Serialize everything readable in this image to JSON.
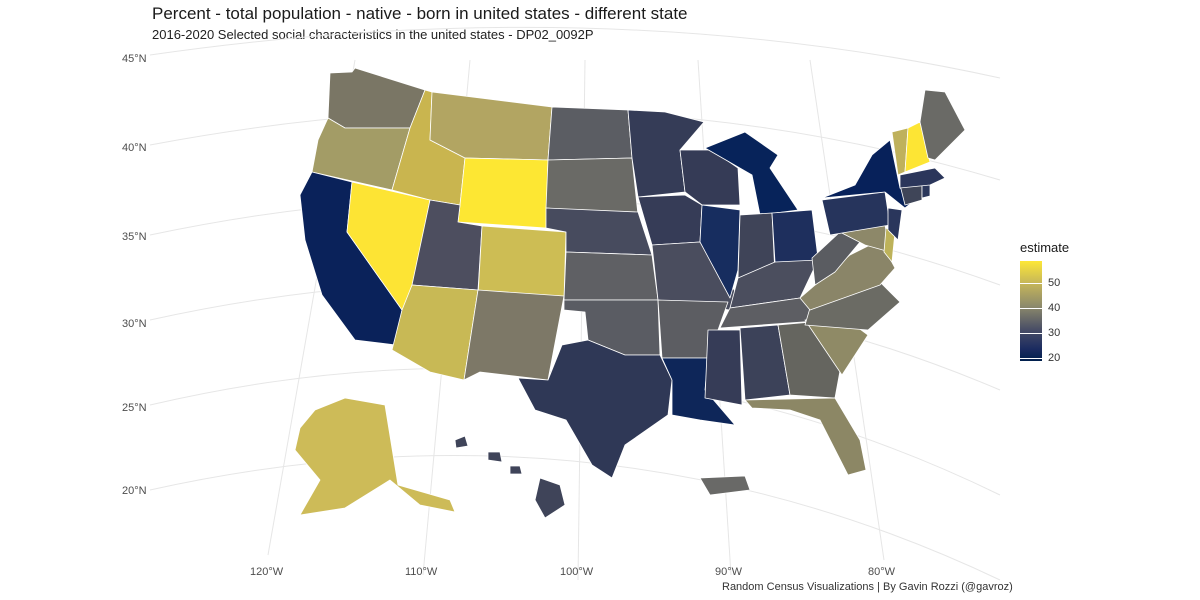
{
  "title": "Percent - total population - native - born in united states - different state",
  "subtitle": "2016-2020 Selected social characteristics in the united states - DP02_0092P",
  "caption": "Random Census Visualizations | By Gavin Rozzi (@gavroz)",
  "graticule": {
    "latitudes": [
      "45°N",
      "40°N",
      "35°N",
      "30°N",
      "25°N",
      "20°N"
    ],
    "longitudes": [
      "120°W",
      "110°W",
      "100°W",
      "90°W",
      "80°W"
    ]
  },
  "legend": {
    "title": "estimate",
    "ticks": [
      "50",
      "40",
      "30",
      "20"
    ],
    "colors": [
      "#fde737",
      "#c6b759",
      "#8d8a6b",
      "#4a4f66",
      "#1b2b60",
      "#00204d"
    ]
  },
  "state_colors": {
    "WA": "#7a7665",
    "OR": "#a39c66",
    "CA": "#0a225a",
    "NV": "#fde434",
    "ID": "#c9b54f",
    "MT": "#b2a562",
    "WY": "#fde733",
    "UT": "#4d4e5f",
    "AZ": "#c8b955",
    "CO": "#cdbd54",
    "NM": "#7d7867",
    "ND": "#5b5d63",
    "SD": "#6a6a66",
    "NE": "#474b5e",
    "KS": "#5f6064",
    "OK": "#5a5c63",
    "TX": "#2f3856",
    "MN": "#353c57",
    "IA": "#363c57",
    "MO": "#4a4d5e",
    "AR": "#5c5d62",
    "LA": "#0e2659",
    "WI": "#353b56",
    "IL": "#172d5f",
    "MI": "#07235a",
    "IN": "#3f4458",
    "OH": "#1e2f5d",
    "KY": "#4b4e5e",
    "TN": "#5d5e63",
    "MS": "#363c57",
    "AL": "#3c4259",
    "GA": "#65655f",
    "FL": "#8c8765",
    "SC": "#8f8a66",
    "NC": "#6b6b64",
    "VA": "#8a8568",
    "WV": "#5a5c61",
    "MD": "#8d8869",
    "DE": "#bdb25a",
    "PA": "#26345c",
    "NJ": "#2a365c",
    "NY": "#07215a",
    "CT": "#3f4558",
    "RI": "#2b375b",
    "MA": "#2b365b",
    "VT": "#bfb15c",
    "NH": "#fde534",
    "ME": "#6a6a66",
    "AK": "#cdbb58",
    "HI": "#3f4459",
    "PR": "#696967"
  }
}
